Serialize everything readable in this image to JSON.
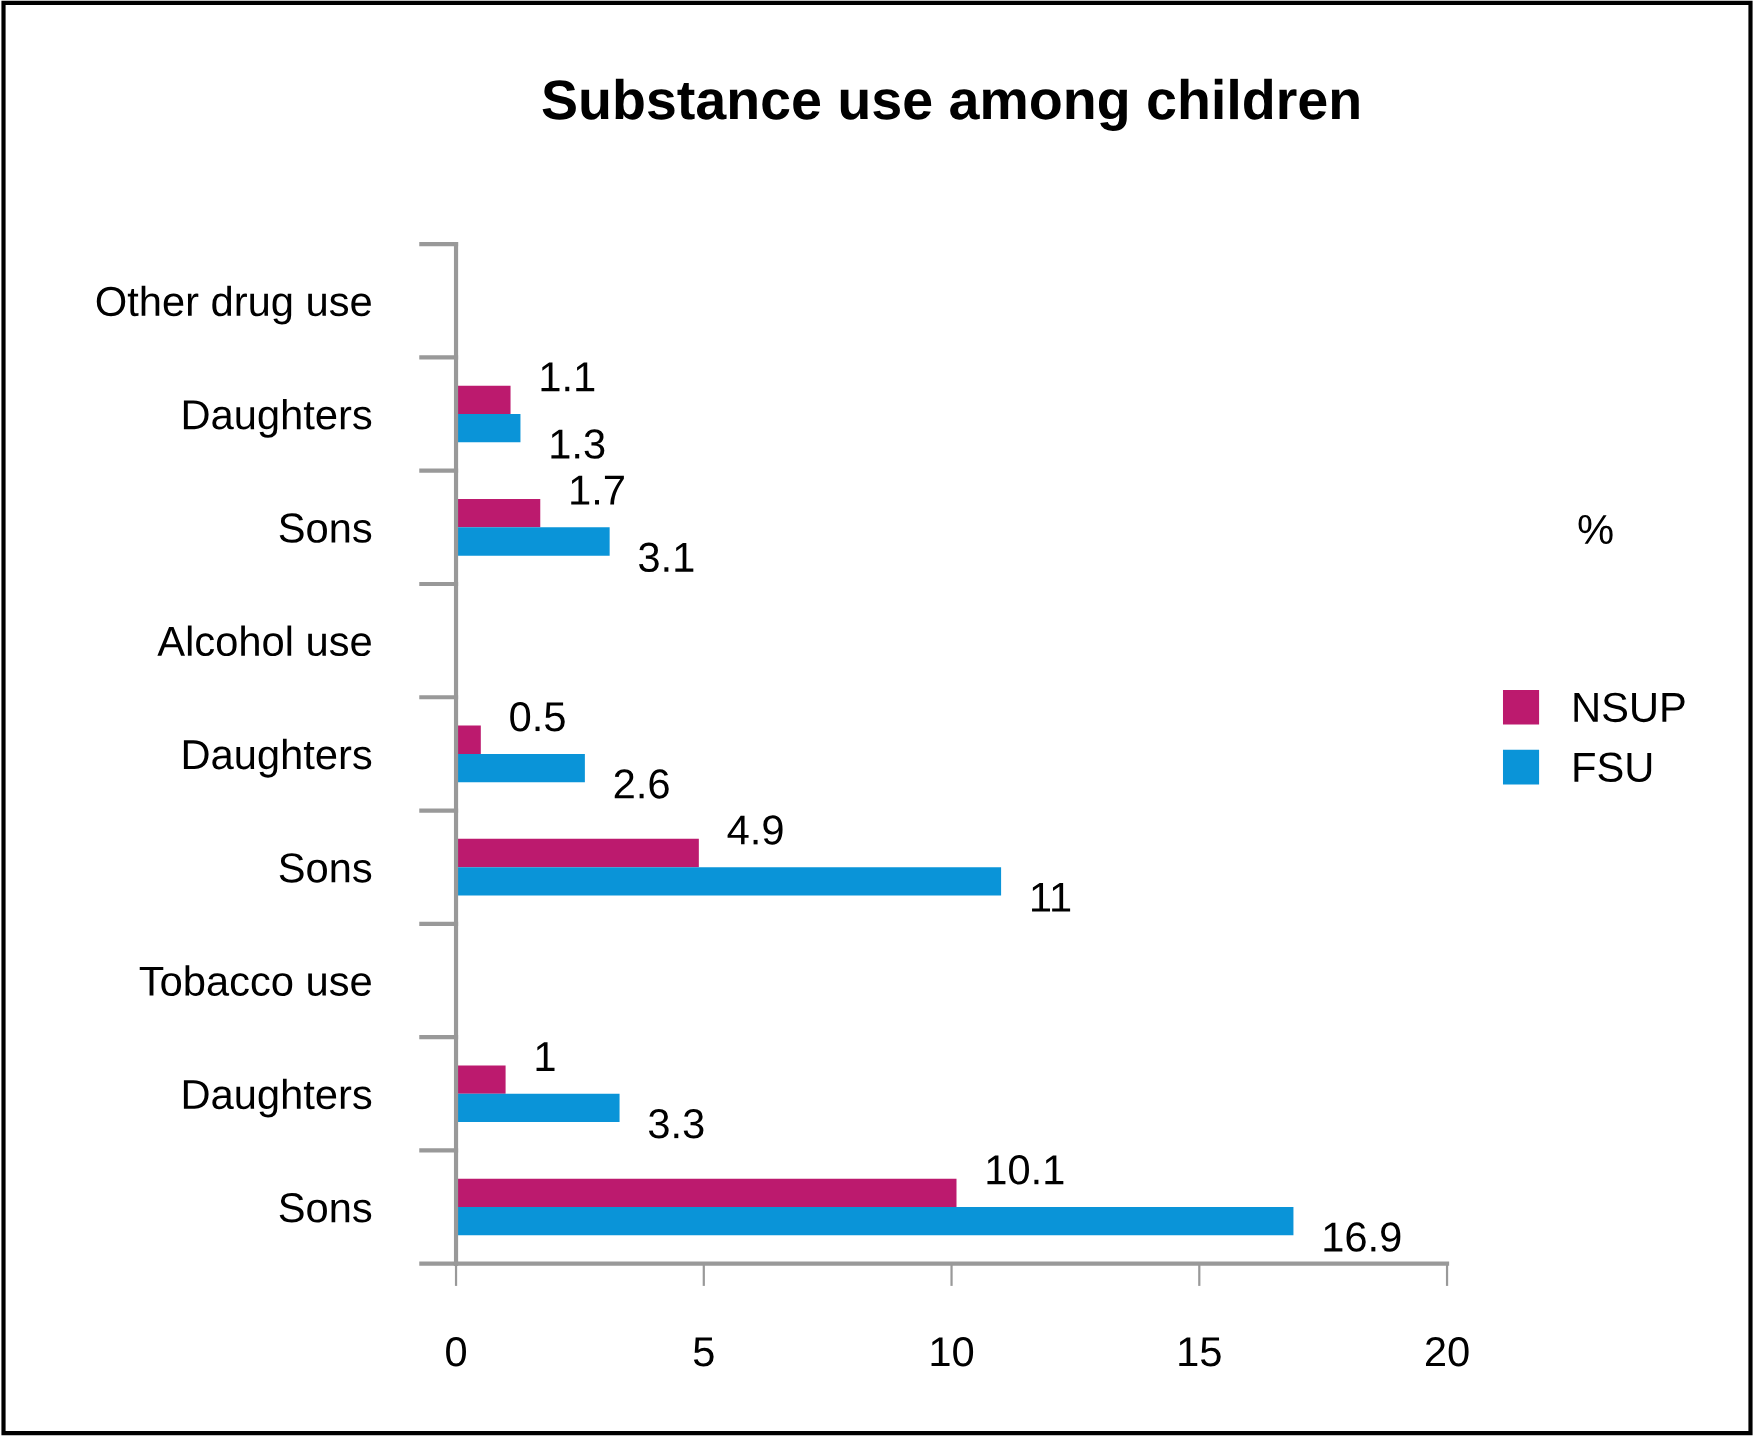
{
  "chart_data": {
    "type": "bar",
    "orientation": "horizontal",
    "title": "Substance use among children",
    "categories": [
      "Other drug use",
      "Daughters",
      "Sons",
      "Alcohol use",
      "Daughters",
      "Sons",
      "Tobacco use",
      "Daughters",
      "Sons"
    ],
    "series": [
      {
        "name": "NSUP",
        "color": "#bc1a6e",
        "values": [
          null,
          1.1,
          1.7,
          null,
          0.5,
          4.9,
          null,
          1,
          10.1
        ]
      },
      {
        "name": "FSU",
        "color": "#0a94d8",
        "values": [
          null,
          1.3,
          3.1,
          null,
          2.6,
          11,
          null,
          3.3,
          16.9
        ]
      }
    ],
    "xlim": [
      0,
      20
    ],
    "xticks": [
      0,
      5,
      10,
      15,
      20
    ],
    "grid": false,
    "legend": "right",
    "legend_title": "%",
    "data_labels": true
  }
}
